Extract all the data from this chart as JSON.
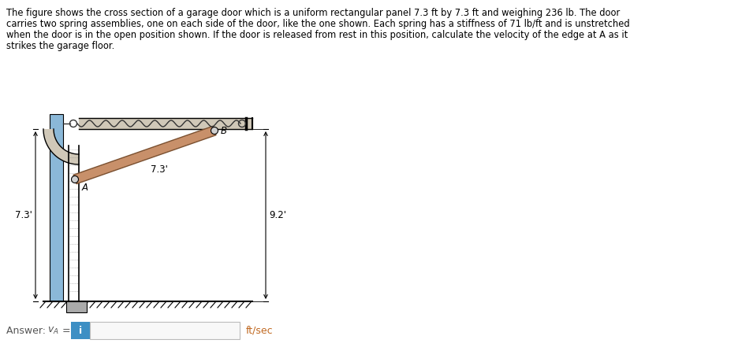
{
  "title_line1": "The figure shows the cross section of a garage door which is a uniform rectangular panel 7.3 ft by 7.3 ft and weighing 236 lb. The door",
  "title_line2": "carries two spring assemblies, one on each side of the door, like the one shown. Each spring has a stiffness of 71 lb/ft and is unstretched",
  "title_line3": "when the door is in the open position shown. If the door is released from rest in this position, calculate the velocity of the edge at A as it",
  "title_line4": "strikes the garage floor.",
  "label_73_vert": "7.3'",
  "label_73_horiz": "7.3'",
  "label_92": "9.2'",
  "label_B": "B",
  "label_A": "A",
  "ftpersec_text": "ft/sec",
  "answer_prefix": "Answer: ",
  "va_label": "v",
  "va_sub": "A",
  "equals": " = ",
  "bg_color": "#ffffff",
  "wall_blue": "#8bb8d8",
  "door_color": "#c8906a",
  "track_fill": "#d0c8b8",
  "dim_color": "#000000",
  "text_color": "#000000",
  "answer_color": "#555555",
  "ftpersec_color": "#c06820",
  "input_blue": "#3d8fc4",
  "input_box_bg": "#f8f8f8",
  "input_box_border": "#bbbbbb",
  "spring_color": "#333333",
  "hatch_color": "#888888"
}
